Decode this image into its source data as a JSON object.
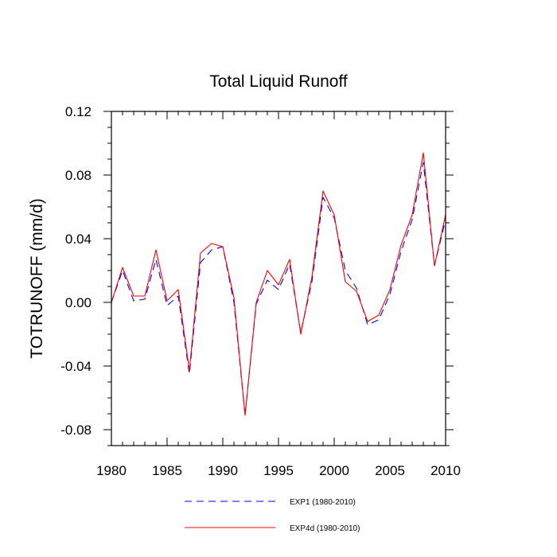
{
  "chart_data": {
    "type": "line",
    "title": "Total Liquid Runoff",
    "xlabel": "",
    "ylabel": "TOTRUNOFF  (mm/d)",
    "xlim": [
      1980,
      2010
    ],
    "ylim": [
      -0.09,
      0.12
    ],
    "xticks": [
      1980,
      1985,
      1990,
      1995,
      2000,
      2005,
      2010
    ],
    "xtick_labels": [
      "1980",
      "1985",
      "1990",
      "1995",
      "2000",
      "2005",
      "2010"
    ],
    "yticks": [
      -0.08,
      -0.04,
      0.0,
      0.04,
      0.08,
      0.12
    ],
    "ytick_labels": [
      "-0.08",
      "-0.04",
      "0.00",
      "0.04",
      "0.08",
      "0.12"
    ],
    "grid": false,
    "legend_position": "bottom-center",
    "x": [
      1980,
      1981,
      1982,
      1983,
      1984,
      1985,
      1986,
      1987,
      1988,
      1989,
      1990,
      1991,
      1992,
      1993,
      1994,
      1995,
      1996,
      1997,
      1998,
      1999,
      2000,
      2001,
      2002,
      2003,
      2004,
      2005,
      2006,
      2007,
      2008,
      2009,
      2010
    ],
    "series": [
      {
        "name": "EXP1 (1980-2010)",
        "color": "#0000ff",
        "style": "dashed",
        "values": [
          0.0,
          0.02,
          0.001,
          0.002,
          0.027,
          -0.002,
          0.004,
          -0.045,
          0.025,
          0.033,
          0.035,
          0.0,
          -0.071,
          -0.001,
          0.014,
          0.008,
          0.024,
          -0.019,
          0.013,
          0.066,
          0.053,
          0.02,
          0.009,
          -0.014,
          -0.011,
          0.005,
          0.032,
          0.052,
          0.088,
          0.023,
          0.052
        ]
      },
      {
        "name": "EXP4d (1980-2010)",
        "color": "#ff0000",
        "style": "solid",
        "values": [
          0.0,
          0.022,
          0.004,
          0.004,
          0.033,
          0.001,
          0.008,
          -0.043,
          0.031,
          0.037,
          0.035,
          0.003,
          -0.071,
          0.0,
          0.02,
          0.011,
          0.027,
          -0.02,
          0.016,
          0.07,
          0.055,
          0.013,
          0.007,
          -0.012,
          -0.008,
          0.008,
          0.036,
          0.055,
          0.094,
          0.023,
          0.055
        ]
      }
    ]
  }
}
